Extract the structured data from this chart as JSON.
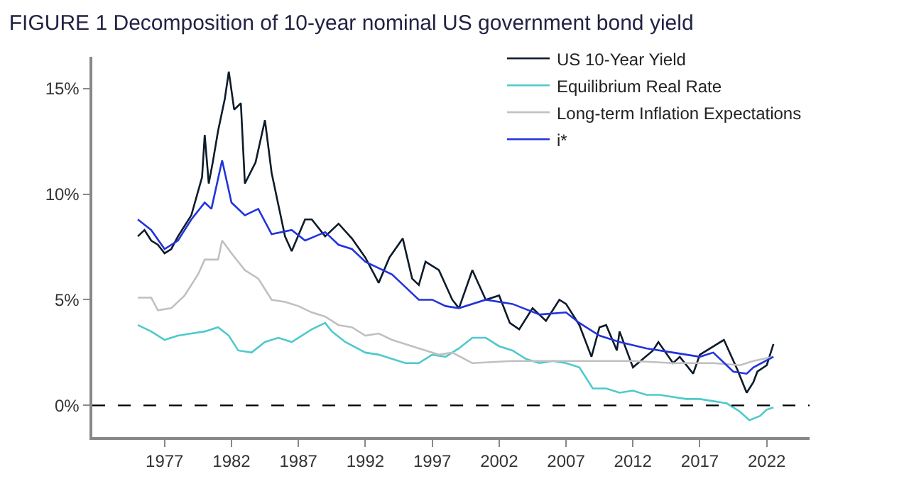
{
  "chart_data": {
    "type": "line",
    "title": "FIGURE 1 Decomposition of 10-year nominal US government bond yield",
    "xlim": [
      1971.6,
      2025.2
    ],
    "xticks": [
      1977,
      1982,
      1987,
      1992,
      1997,
      2002,
      2007,
      2012,
      2017,
      2022
    ],
    "ylim": [
      -1.5,
      16.5
    ],
    "yticks": [
      {
        "value": 0,
        "label": "0%"
      },
      {
        "value": 5,
        "label": "5%"
      },
      {
        "value": 10,
        "label": "10%"
      },
      {
        "value": 15,
        "label": "15%"
      }
    ],
    "legend": "top right",
    "marker": "none",
    "line_style": "solid",
    "ref_lines": [
      {
        "axis": "y",
        "value": 0,
        "label": null,
        "color": "#000000",
        "line_style": "dashed"
      }
    ],
    "series": [
      {
        "name": "US 10-Year Yield",
        "color": "#0d1b2a",
        "x": [
          1975,
          1975.5,
          1976,
          1976.5,
          1977,
          1977.5,
          1978,
          1979,
          1979.8,
          1980,
          1980.3,
          1980.6,
          1981,
          1981.5,
          1981.8,
          1982.2,
          1982.7,
          1983,
          1983.8,
          1984.5,
          1985,
          1985.5,
          1986,
          1986.5,
          1987.5,
          1988,
          1989,
          1990,
          1991,
          1992,
          1993,
          1993.8,
          1994.8,
          1995.5,
          1996,
          1996.5,
          1997.5,
          1998.5,
          1999,
          2000,
          2001,
          2002,
          2002.8,
          2003.5,
          2004.5,
          2005.5,
          2006.5,
          2007,
          2008,
          2008.9,
          2009.5,
          2010,
          2010.8,
          2011,
          2012,
          2013.5,
          2013.9,
          2015,
          2015.5,
          2016.5,
          2017,
          2018.8,
          2019.8,
          2020.5,
          2021,
          2021.3,
          2022,
          2022.5
        ],
        "values": [
          8.0,
          8.3,
          7.8,
          7.6,
          7.2,
          7.4,
          8.0,
          9.0,
          10.8,
          12.8,
          10.5,
          11.5,
          13.0,
          14.5,
          15.8,
          14.0,
          14.3,
          10.5,
          11.5,
          13.5,
          11.0,
          9.5,
          8.0,
          7.3,
          8.8,
          8.8,
          8.0,
          8.6,
          7.9,
          7.0,
          5.8,
          7.0,
          7.9,
          6.0,
          5.7,
          6.8,
          6.4,
          5.0,
          4.6,
          6.4,
          5.0,
          5.2,
          3.9,
          3.6,
          4.6,
          4.0,
          5.0,
          4.8,
          3.8,
          2.3,
          3.7,
          3.8,
          2.6,
          3.5,
          1.8,
          2.6,
          3.0,
          2.0,
          2.3,
          1.5,
          2.4,
          3.1,
          1.7,
          0.6,
          1.1,
          1.6,
          1.9,
          2.9
        ]
      },
      {
        "name": "Equilibrium Real Rate",
        "color": "#4fc9cc",
        "x": [
          1975,
          1976,
          1977,
          1978,
          1979,
          1980,
          1981,
          1981.8,
          1982.5,
          1983.5,
          1984.5,
          1985.5,
          1986.5,
          1988,
          1989,
          1989.5,
          1990.5,
          1992,
          1993,
          1995,
          1996,
          1997,
          1998,
          1999,
          2000,
          2001,
          2002,
          2003,
          2004,
          2005,
          2006,
          2007,
          2008,
          2009,
          2010,
          2011,
          2012,
          2013,
          2014,
          2015,
          2016,
          2017,
          2018,
          2019,
          2020,
          2020.7,
          2021.5,
          2022,
          2022.5
        ],
        "values": [
          3.8,
          3.5,
          3.1,
          3.3,
          3.4,
          3.5,
          3.7,
          3.3,
          2.6,
          2.5,
          3.0,
          3.2,
          3.0,
          3.6,
          3.9,
          3.5,
          3.0,
          2.5,
          2.4,
          2.0,
          2.0,
          2.4,
          2.3,
          2.7,
          3.2,
          3.2,
          2.8,
          2.6,
          2.2,
          2.0,
          2.1,
          2.0,
          1.8,
          0.8,
          0.8,
          0.6,
          0.7,
          0.5,
          0.5,
          0.4,
          0.3,
          0.3,
          0.2,
          0.1,
          -0.3,
          -0.7,
          -0.5,
          -0.2,
          -0.1
        ]
      },
      {
        "name": "Long-term Inflation Expectations",
        "color": "#c0c0c0",
        "x": [
          1975,
          1976,
          1976.5,
          1977.5,
          1978.5,
          1979.5,
          1980,
          1981,
          1981.3,
          1982,
          1983,
          1984,
          1985,
          1986,
          1987,
          1988,
          1989,
          1990,
          1991,
          1992,
          1993,
          1994,
          1995,
          1996,
          1997.5,
          1998.5,
          2000,
          2003,
          2008,
          2012,
          2015,
          2018,
          2020,
          2021,
          2022.5
        ],
        "values": [
          5.1,
          5.1,
          4.5,
          4.6,
          5.2,
          6.2,
          6.9,
          6.9,
          7.8,
          7.2,
          6.4,
          6.0,
          5.0,
          4.9,
          4.7,
          4.4,
          4.2,
          3.8,
          3.7,
          3.3,
          3.4,
          3.1,
          2.9,
          2.7,
          2.4,
          2.5,
          2.0,
          2.1,
          2.1,
          2.1,
          2.0,
          2.0,
          1.9,
          2.1,
          2.3
        ]
      },
      {
        "name": "i*",
        "color": "#2233dd",
        "x": [
          1975,
          1976,
          1977,
          1978,
          1979,
          1980,
          1980.5,
          1981.3,
          1982,
          1983,
          1984,
          1985,
          1986.5,
          1987.5,
          1989,
          1990,
          1991,
          1992,
          1994,
          1995,
          1996,
          1997,
          1998,
          1999,
          2001,
          2003,
          2005,
          2007,
          2008,
          2009.5,
          2011,
          2013,
          2015,
          2017,
          2018,
          2019.5,
          2020.5,
          2021,
          2022.5
        ],
        "values": [
          8.8,
          8.3,
          7.4,
          7.8,
          8.8,
          9.6,
          9.3,
          11.6,
          9.6,
          9.0,
          9.3,
          8.1,
          8.3,
          7.8,
          8.2,
          7.6,
          7.4,
          6.8,
          6.2,
          5.6,
          5.0,
          5.0,
          4.7,
          4.6,
          5.0,
          4.8,
          4.3,
          4.4,
          3.9,
          3.3,
          3.0,
          2.7,
          2.5,
          2.3,
          2.5,
          1.6,
          1.5,
          1.8,
          2.3
        ]
      }
    ]
  }
}
